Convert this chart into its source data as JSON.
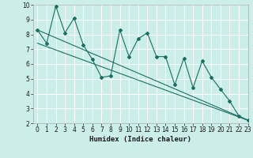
{
  "xlabel": "Humidex (Indice chaleur)",
  "ylabel": "",
  "bg_color": "#cceee8",
  "plot_bg_color": "#cceee8",
  "grid_color": "#ffffff",
  "line_color": "#1a6e64",
  "spine_color": "#aaaaaa",
  "xlim": [
    -0.5,
    23
  ],
  "ylim": [
    2,
    10
  ],
  "xticks": [
    0,
    1,
    2,
    3,
    4,
    5,
    6,
    7,
    8,
    9,
    10,
    11,
    12,
    13,
    14,
    15,
    16,
    17,
    18,
    19,
    20,
    21,
    22,
    23
  ],
  "yticks": [
    2,
    3,
    4,
    5,
    6,
    7,
    8,
    9,
    10
  ],
  "zigzag_x": [
    0,
    1,
    2,
    3,
    4,
    5,
    6,
    7,
    8,
    9,
    10,
    11,
    12,
    13,
    14,
    15,
    16,
    17,
    18,
    19,
    20,
    21,
    22,
    23
  ],
  "zigzag_y": [
    8.3,
    7.4,
    9.9,
    8.1,
    9.1,
    7.3,
    6.3,
    5.1,
    5.2,
    8.3,
    6.5,
    7.7,
    8.1,
    6.5,
    6.5,
    4.6,
    6.4,
    4.4,
    6.2,
    5.1,
    4.3,
    3.5,
    2.5,
    2.2
  ],
  "line1_x": [
    0,
    23
  ],
  "line1_y": [
    8.3,
    2.2
  ],
  "line2_x": [
    0,
    23
  ],
  "line2_y": [
    7.4,
    2.2
  ],
  "lw": 0.8,
  "ms": 2.0,
  "tick_fontsize": 5.5,
  "xlabel_fontsize": 6.5
}
